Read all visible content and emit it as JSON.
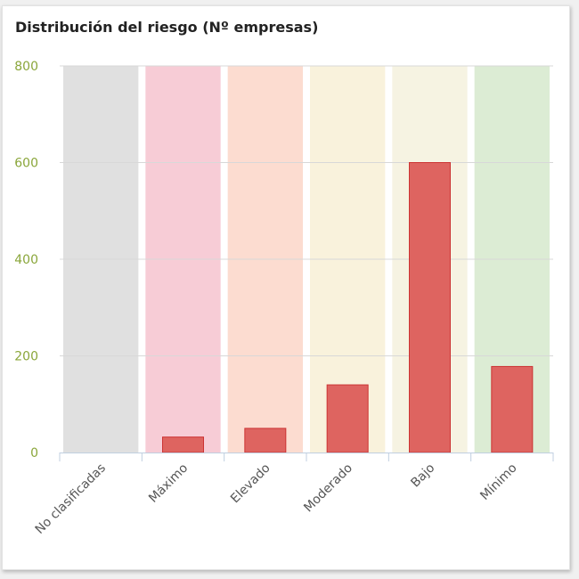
{
  "chart_data": {
    "type": "bar",
    "title": "Distribución del riesgo (Nº empresas)",
    "categories": [
      "No clasificadas",
      "Máximo",
      "Elevado",
      "Moderado",
      "Bajo",
      "Mínimo"
    ],
    "series": [
      {
        "values": [
          0,
          32,
          50,
          140,
          600,
          178
        ]
      }
    ],
    "band_colors": [
      "#e0e0e0",
      "#f7ccd6",
      "#fcdcd0",
      "#f9f2dc",
      "#f6f3e2",
      "#dcecd4"
    ],
    "bar_color": "#de6460",
    "bar_border_color": "#cc3333",
    "yticks": [
      0,
      200,
      400,
      600,
      800
    ],
    "ylim": [
      0,
      800
    ],
    "xlabel": "",
    "ylabel": "",
    "grid": true,
    "legend": "none"
  }
}
